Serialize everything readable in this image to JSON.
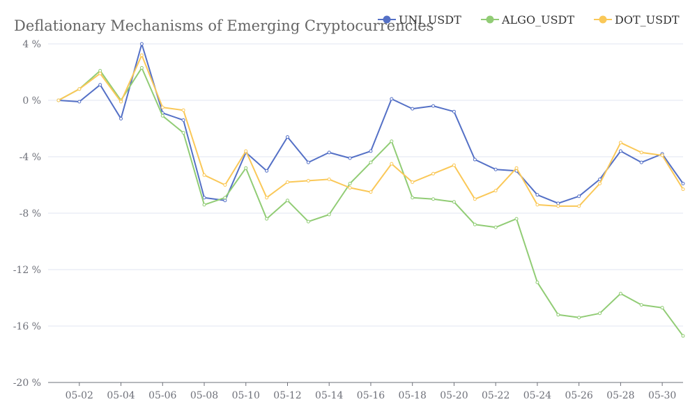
{
  "chart_data": {
    "type": "line",
    "title": "Deflationary Mechanisms of Emerging Cryptocurrencies",
    "xlabel": "",
    "ylabel": "",
    "ylim": [
      -20,
      4
    ],
    "yticks": [
      4,
      0,
      -4,
      -8,
      -12,
      -16,
      -20
    ],
    "ytick_labels": [
      "4 %",
      "0 %",
      "-4 %",
      "-8 %",
      "-12 %",
      "-16 %",
      "-20 %"
    ],
    "x": [
      "05-01",
      "05-02",
      "05-03",
      "05-04",
      "05-05",
      "05-06",
      "05-07",
      "05-08",
      "05-09",
      "05-10",
      "05-11",
      "05-12",
      "05-13",
      "05-14",
      "05-15",
      "05-16",
      "05-17",
      "05-18",
      "05-19",
      "05-20",
      "05-21",
      "05-22",
      "05-23",
      "05-24",
      "05-25",
      "05-26",
      "05-27",
      "05-28",
      "05-29",
      "05-30",
      "05-31"
    ],
    "xtick_labels": [
      "05-02",
      "05-04",
      "05-06",
      "05-08",
      "05-10",
      "05-12",
      "05-14",
      "05-16",
      "05-18",
      "05-20",
      "05-22",
      "05-24",
      "05-26",
      "05-28",
      "05-30"
    ],
    "legend_position": "top-right",
    "grid": true,
    "series": [
      {
        "name": "UNI_USDT",
        "color": "#5470c6",
        "values": [
          0,
          -0.1,
          1.1,
          -1.3,
          4.0,
          -0.9,
          -1.4,
          -6.9,
          -7.1,
          -3.7,
          -5.0,
          -2.6,
          -4.4,
          -3.7,
          -4.1,
          -3.6,
          0.1,
          -0.6,
          -0.4,
          -0.8,
          -4.2,
          -4.9,
          -5.0,
          -6.7,
          -7.3,
          -6.8,
          -5.6,
          -3.6,
          -4.4,
          -3.8,
          -5.9
        ]
      },
      {
        "name": "ALGO_USDT",
        "color": "#91cc75",
        "values": [
          0,
          0.8,
          2.1,
          0.0,
          2.3,
          -1.1,
          -2.3,
          -7.4,
          -6.9,
          -4.8,
          -8.4,
          -7.1,
          -8.6,
          -8.1,
          -5.9,
          -4.4,
          -2.9,
          -6.9,
          -7.0,
          -7.2,
          -8.8,
          -9.0,
          -8.4,
          -12.9,
          -15.2,
          -15.4,
          -15.1,
          -13.7,
          -14.5,
          -14.7,
          -16.7
        ]
      },
      {
        "name": "DOT_USDT",
        "color": "#fac858",
        "values": [
          0,
          0.8,
          1.9,
          -0.1,
          3.2,
          -0.5,
          -0.7,
          -5.3,
          -6.0,
          -3.6,
          -6.9,
          -5.8,
          -5.7,
          -5.6,
          -6.2,
          -6.5,
          -4.5,
          -5.8,
          -5.2,
          -4.6,
          -7.0,
          -6.4,
          -4.8,
          -7.4,
          -7.5,
          -7.5,
          -5.9,
          -3.0,
          -3.7,
          -3.9,
          -6.3
        ]
      }
    ]
  }
}
